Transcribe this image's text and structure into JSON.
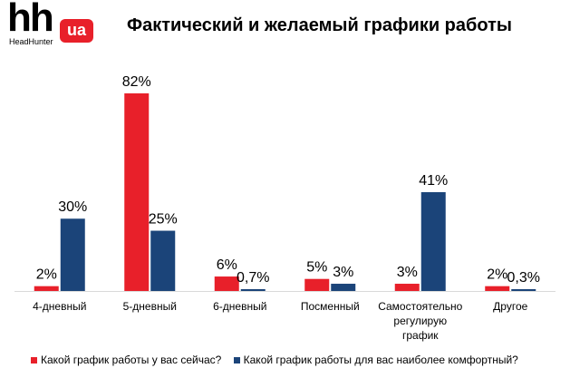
{
  "logo": {
    "main": "hh",
    "badge": "ua",
    "subtitle": "HeadHunter"
  },
  "colors": {
    "current": "#e8202a",
    "comfortable": "#1b4479",
    "brand": "#e8202a"
  },
  "chart_data": {
    "type": "bar",
    "title": "Фактический и желаемый графики работы",
    "categories": [
      "4-дневный",
      "5-дневный",
      "6-дневный",
      "Посменный",
      "Самостоятельно регулирую график",
      "Другое"
    ],
    "category_lines": [
      [
        "4-дневный"
      ],
      [
        "5-дневный"
      ],
      [
        "6-дневный"
      ],
      [
        "Посменный"
      ],
      [
        "Самостоятельно",
        "регулирую",
        "график"
      ],
      [
        "Другое"
      ]
    ],
    "series": [
      {
        "name": "Какой график работы у вас сейчас?",
        "values": [
          2,
          82,
          6,
          5,
          3,
          2
        ],
        "labels": [
          "2%",
          "82%",
          "6%",
          "5%",
          "3%",
          "2%"
        ]
      },
      {
        "name": "Какой график работы для вас наиболее комфортный?",
        "values": [
          30,
          25,
          0.7,
          3,
          41,
          0.3
        ],
        "labels": [
          "30%",
          "25%",
          "0,7%",
          "3%",
          "41%",
          "0,3%"
        ]
      }
    ],
    "ylim": [
      0,
      82
    ],
    "grid": false,
    "legend": "bottom"
  }
}
